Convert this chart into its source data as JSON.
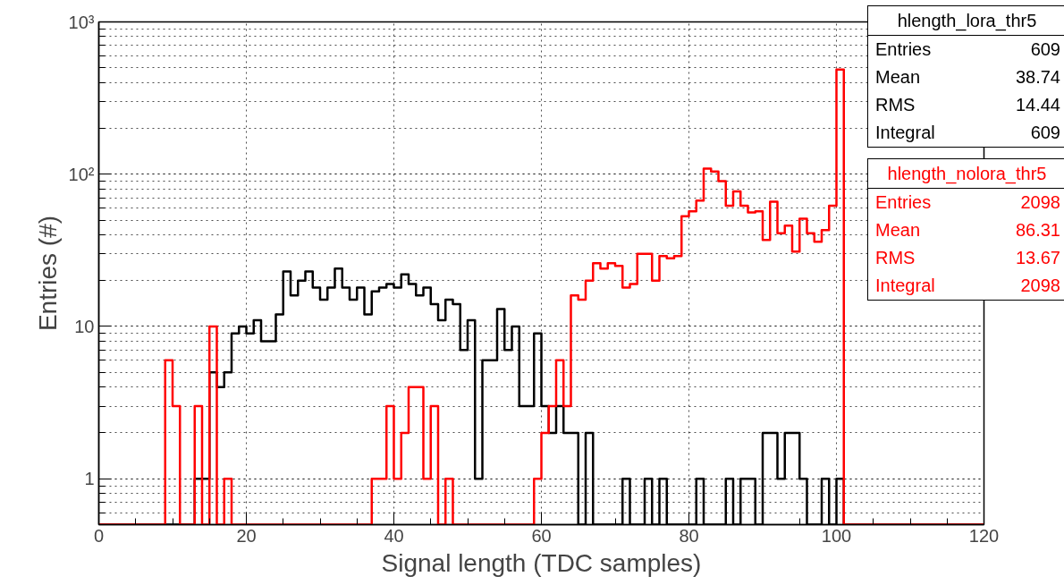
{
  "chart_data": {
    "type": "histogram",
    "xlabel": "Signal length (TDC samples)",
    "ylabel": "Entries (#)",
    "bins": [
      0,
      1,
      2,
      3,
      4,
      5,
      6,
      7,
      8,
      9,
      10,
      11,
      12,
      13,
      14,
      15,
      16,
      17,
      18,
      19,
      20,
      21,
      22,
      23,
      24,
      25,
      26,
      27,
      28,
      29,
      30,
      31,
      32,
      33,
      34,
      35,
      36,
      37,
      38,
      39,
      40,
      41,
      42,
      43,
      44,
      45,
      46,
      47,
      48,
      49,
      50,
      51,
      52,
      53,
      54,
      55,
      56,
      57,
      58,
      59,
      60,
      61,
      62,
      63,
      64,
      65,
      66,
      67,
      68,
      69,
      70,
      71,
      72,
      73,
      74,
      75,
      76,
      77,
      78,
      79,
      80,
      81,
      82,
      83,
      84,
      85,
      86,
      87,
      88,
      89,
      90,
      91,
      92,
      93,
      94,
      95,
      96,
      97,
      98,
      99,
      100,
      101,
      102,
      103,
      104,
      105,
      106,
      107,
      108,
      109,
      110,
      111,
      112,
      113,
      114,
      115,
      116,
      117,
      118,
      119,
      120
    ],
    "series": [
      {
        "name": "hlength_lora_thr5",
        "color": "#000000",
        "values": [
          null,
          null,
          null,
          null,
          null,
          null,
          null,
          null,
          null,
          null,
          null,
          null,
          null,
          1,
          1,
          5,
          4,
          5,
          9,
          10,
          9,
          11,
          8,
          8,
          12,
          23,
          16,
          20,
          23,
          18,
          15,
          18,
          24,
          18,
          15,
          18,
          12,
          17,
          18,
          19,
          18,
          22,
          19,
          16,
          18,
          14,
          11,
          15,
          14,
          7,
          11,
          1,
          6,
          6,
          13,
          7,
          10,
          3,
          3,
          9,
          3,
          2,
          3,
          2,
          2,
          null,
          2,
          null,
          null,
          null,
          null,
          1,
          null,
          null,
          1,
          null,
          1,
          null,
          null,
          null,
          null,
          1,
          null,
          null,
          null,
          1,
          null,
          1,
          1,
          null,
          2,
          2,
          1,
          2,
          2,
          1,
          null,
          null,
          1,
          null,
          1,
          null,
          null,
          null,
          null,
          null,
          null,
          null,
          null,
          null,
          null,
          null,
          null,
          null,
          null,
          null,
          null,
          null,
          null,
          null
        ]
      },
      {
        "name": "hlength_nolora_thr5",
        "color": "#ff0000",
        "values": [
          null,
          null,
          null,
          null,
          null,
          null,
          null,
          null,
          null,
          6,
          3,
          null,
          null,
          3,
          null,
          10,
          null,
          1,
          null,
          null,
          null,
          null,
          null,
          null,
          null,
          null,
          null,
          null,
          null,
          null,
          null,
          null,
          null,
          null,
          null,
          null,
          null,
          1,
          1,
          3,
          1,
          2,
          4,
          4,
          1,
          3,
          null,
          1,
          null,
          null,
          null,
          null,
          null,
          null,
          null,
          null,
          null,
          null,
          null,
          1,
          2,
          3,
          6,
          3,
          16,
          15,
          20,
          26,
          24,
          26,
          25,
          18,
          19,
          30,
          30,
          20,
          29,
          28,
          29,
          53,
          57,
          67,
          109,
          104,
          90,
          62,
          77,
          62,
          56,
          57,
          37,
          66,
          41,
          46,
          31,
          51,
          41,
          36,
          43,
          62,
          486,
          null,
          null,
          null,
          null,
          null,
          null,
          null,
          null,
          null,
          null,
          null,
          null,
          null,
          null,
          null,
          null,
          null,
          null,
          null
        ]
      }
    ],
    "annotations": [
      "Entries 609",
      "Mean 38.74",
      "RMS 14.44",
      "Integral 609",
      "Entries 2098",
      "Mean 86.31",
      "RMS 13.67",
      "Integral 2098"
    ],
    "xlim": [
      0,
      120
    ],
    "xticks": [
      0,
      20,
      40,
      60,
      80,
      100,
      120
    ],
    "ylim": [
      0.5,
      1000
    ],
    "yticks": [
      {
        "value": 0.5,
        "label": null
      },
      1,
      10,
      {
        "value": 100,
        "label": "10²"
      },
      {
        "value": 1000,
        "label": "10³"
      }
    ],
    "log": "y",
    "grid": true,
    "legend": "top right",
    "line_style": "solid"
  }
}
